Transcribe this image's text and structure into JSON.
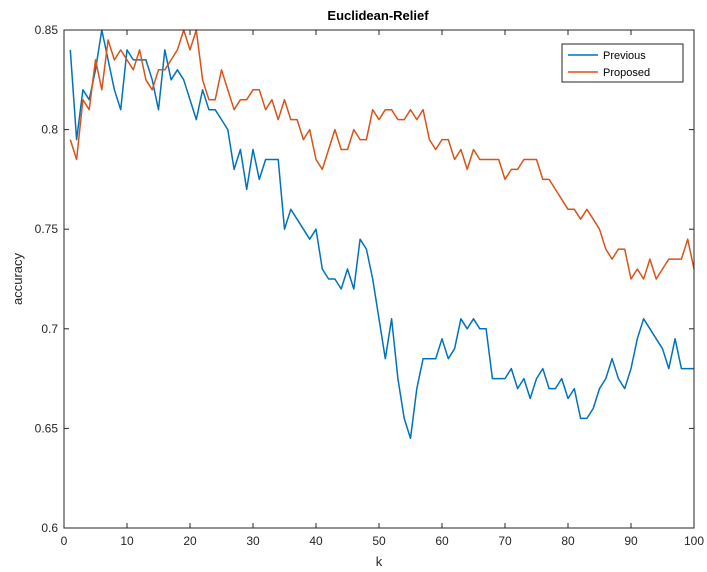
{
  "chart_data": {
    "type": "line",
    "title": "Euclidean-Relief",
    "xlabel": "k",
    "ylabel": "accuracy",
    "xlim": [
      0,
      100
    ],
    "ylim": [
      0.6,
      0.85
    ],
    "xticks": [
      0,
      10,
      20,
      30,
      40,
      50,
      60,
      70,
      80,
      90,
      100
    ],
    "xtick_labels": [
      "0",
      "10",
      "20",
      "30",
      "40",
      "50",
      "60",
      "70",
      "80",
      "90",
      "100"
    ],
    "yticks": [
      0.6,
      0.65,
      0.7,
      0.75,
      0.8,
      0.85
    ],
    "ytick_labels": [
      "0.6",
      "0.65",
      "0.7",
      "0.75",
      "0.8",
      "0.85"
    ],
    "grid": false,
    "legend_position": "top-right",
    "x": [
      1,
      2,
      3,
      4,
      5,
      6,
      7,
      8,
      9,
      10,
      11,
      12,
      13,
      14,
      15,
      16,
      17,
      18,
      19,
      20,
      21,
      22,
      23,
      24,
      25,
      26,
      27,
      28,
      29,
      30,
      31,
      32,
      33,
      34,
      35,
      36,
      37,
      38,
      39,
      40,
      41,
      42,
      43,
      44,
      45,
      46,
      47,
      48,
      49,
      50,
      51,
      52,
      53,
      54,
      55,
      56,
      57,
      58,
      59,
      60,
      61,
      62,
      63,
      64,
      65,
      66,
      67,
      68,
      69,
      70,
      71,
      72,
      73,
      74,
      75,
      76,
      77,
      78,
      79,
      80,
      81,
      82,
      83,
      84,
      85,
      86,
      87,
      88,
      89,
      90,
      91,
      92,
      93,
      94,
      95,
      96,
      97,
      98,
      99,
      100
    ],
    "series": [
      {
        "name": "Previous",
        "color": "#0072BD",
        "values": [
          0.84,
          0.795,
          0.82,
          0.815,
          0.83,
          0.85,
          0.835,
          0.82,
          0.81,
          0.84,
          0.835,
          0.835,
          0.835,
          0.825,
          0.81,
          0.84,
          0.825,
          0.83,
          0.825,
          0.815,
          0.805,
          0.82,
          0.81,
          0.81,
          0.805,
          0.8,
          0.78,
          0.79,
          0.77,
          0.79,
          0.775,
          0.785,
          0.785,
          0.785,
          0.75,
          0.76,
          0.755,
          0.75,
          0.745,
          0.75,
          0.73,
          0.725,
          0.725,
          0.72,
          0.73,
          0.72,
          0.745,
          0.74,
          0.725,
          0.705,
          0.685,
          0.705,
          0.675,
          0.655,
          0.645,
          0.67,
          0.685,
          0.685,
          0.685,
          0.695,
          0.685,
          0.69,
          0.705,
          0.7,
          0.705,
          0.7,
          0.7,
          0.675,
          0.675,
          0.675,
          0.68,
          0.67,
          0.675,
          0.665,
          0.675,
          0.68,
          0.67,
          0.67,
          0.675,
          0.665,
          0.67,
          0.655,
          0.655,
          0.66,
          0.67,
          0.675,
          0.685,
          0.675,
          0.67,
          0.68,
          0.695,
          0.705,
          0.7,
          0.695,
          0.69,
          0.68,
          0.695,
          0.68,
          0.68,
          0.68
        ]
      },
      {
        "name": "Proposed",
        "color": "#D95319",
        "values": [
          0.795,
          0.785,
          0.815,
          0.81,
          0.835,
          0.82,
          0.845,
          0.835,
          0.84,
          0.835,
          0.83,
          0.84,
          0.825,
          0.82,
          0.83,
          0.83,
          0.835,
          0.84,
          0.85,
          0.84,
          0.85,
          0.825,
          0.815,
          0.815,
          0.83,
          0.82,
          0.81,
          0.815,
          0.815,
          0.82,
          0.82,
          0.81,
          0.815,
          0.805,
          0.815,
          0.805,
          0.805,
          0.795,
          0.8,
          0.785,
          0.78,
          0.79,
          0.8,
          0.79,
          0.79,
          0.8,
          0.795,
          0.795,
          0.81,
          0.805,
          0.81,
          0.81,
          0.805,
          0.805,
          0.81,
          0.805,
          0.81,
          0.795,
          0.79,
          0.795,
          0.795,
          0.785,
          0.79,
          0.78,
          0.79,
          0.785,
          0.785,
          0.785,
          0.785,
          0.775,
          0.78,
          0.78,
          0.785,
          0.785,
          0.785,
          0.775,
          0.775,
          0.77,
          0.765,
          0.76,
          0.76,
          0.755,
          0.76,
          0.755,
          0.75,
          0.74,
          0.735,
          0.74,
          0.74,
          0.725,
          0.73,
          0.725,
          0.735,
          0.725,
          0.73,
          0.735,
          0.735,
          0.735,
          0.745,
          0.73
        ]
      }
    ]
  }
}
